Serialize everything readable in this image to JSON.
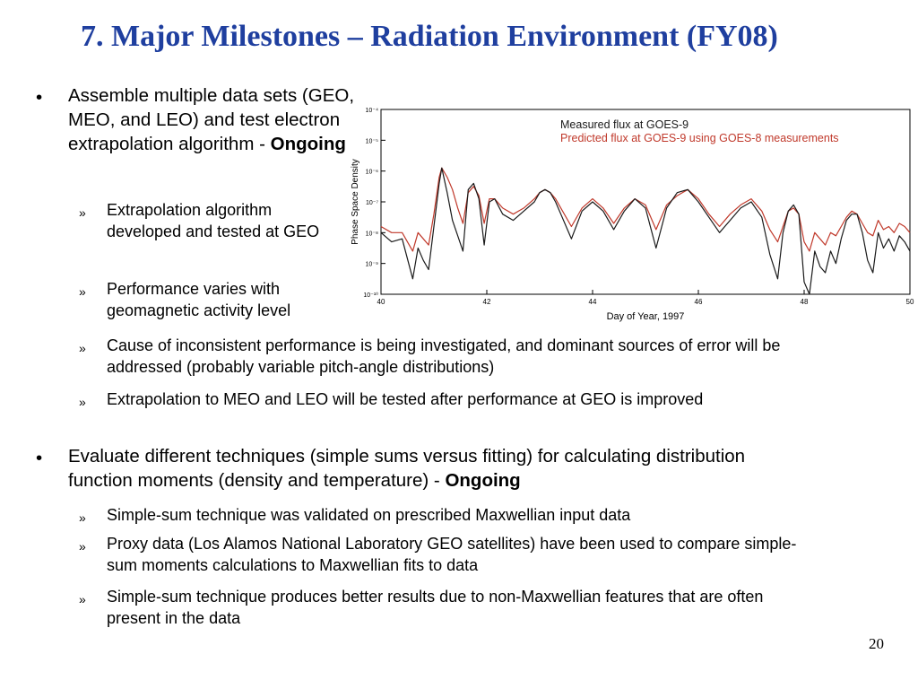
{
  "slide": {
    "title": "7. Major Milestones – Radiation Environment (FY08)",
    "page_number": "20",
    "bullet_l1_glyph": "•",
    "bullet_l2_glyph": "»"
  },
  "section1": {
    "text": "Assemble multiple data sets (GEO, MEO, and LEO) and test electron extrapolation algorithm - ",
    "status": "Ongoing",
    "subitems": [
      "Extrapolation algorithm developed and tested at GEO",
      "Performance varies with geomagnetic activity level",
      "Cause of inconsistent performance is being investigated, and dominant sources of error will be addressed (probably variable pitch-angle distributions)",
      "Extrapolation to MEO and LEO will be tested after performance at GEO is improved"
    ]
  },
  "section2": {
    "text": "Evaluate different techniques (simple sums versus fitting) for calculating distribution function moments (density and temperature)  - ",
    "status": "Ongoing",
    "subitems": [
      "Simple-sum technique was validated on prescribed Maxwellian input data",
      "Proxy data (Los Alamos National Laboratory GEO satellites) have been used to compare simple-sum moments calculations to Maxwellian fits to data",
      "Simple-sum technique produces better results due to non-Maxwellian features that are often present in the data"
    ]
  },
  "chart_data": {
    "type": "line",
    "xlabel": "Day of Year, 1997",
    "ylabel": "Phase Space Density",
    "xlim": [
      40,
      50
    ],
    "xticks": [
      "40",
      "42",
      "44",
      "46",
      "48",
      "50"
    ],
    "ylog": true,
    "ylim_exp": [
      -10,
      -4
    ],
    "yticks": [
      "10⁻¹⁰",
      "10⁻⁹",
      "10⁻⁸",
      "10⁻⁷",
      "10⁻⁶",
      "10⁻⁵",
      "10⁻⁴"
    ],
    "colors": {
      "measured": "#1a1a1a",
      "predicted": "#c0392b"
    },
    "series": [
      {
        "name": "Measured flux at GOES-9",
        "color": "#1a1a1a",
        "x": [
          40.0,
          40.2,
          40.4,
          40.6,
          40.7,
          40.8,
          40.9,
          41.0,
          41.1,
          41.15,
          41.25,
          41.35,
          41.45,
          41.55,
          41.65,
          41.75,
          41.85,
          41.95,
          42.05,
          42.15,
          42.3,
          42.5,
          42.7,
          42.9,
          43.0,
          43.1,
          43.2,
          43.3,
          43.4,
          43.6,
          43.8,
          44.0,
          44.2,
          44.4,
          44.6,
          44.8,
          45.0,
          45.2,
          45.4,
          45.6,
          45.8,
          46.0,
          46.2,
          46.4,
          46.6,
          46.8,
          47.0,
          47.2,
          47.35,
          47.5,
          47.6,
          47.7,
          47.8,
          47.9,
          48.0,
          48.1,
          48.2,
          48.3,
          48.4,
          48.5,
          48.6,
          48.7,
          48.8,
          48.9,
          49.0,
          49.1,
          49.2,
          49.3,
          49.4,
          49.5,
          49.6,
          49.7,
          49.8,
          49.9,
          50.0
        ],
        "y": [
          -8.0,
          -8.3,
          -8.2,
          -9.5,
          -8.5,
          -8.9,
          -9.2,
          -7.8,
          -6.4,
          -5.9,
          -6.7,
          -7.6,
          -8.1,
          -8.6,
          -6.6,
          -6.4,
          -6.9,
          -8.4,
          -7.0,
          -6.9,
          -7.4,
          -7.6,
          -7.3,
          -7.0,
          -6.7,
          -6.6,
          -6.7,
          -7.0,
          -7.4,
          -8.2,
          -7.3,
          -7.0,
          -7.3,
          -7.9,
          -7.3,
          -6.9,
          -7.2,
          -8.5,
          -7.2,
          -6.7,
          -6.6,
          -7.0,
          -7.5,
          -8.0,
          -7.6,
          -7.2,
          -7.0,
          -7.5,
          -8.7,
          -9.5,
          -8.0,
          -7.3,
          -7.1,
          -7.4,
          -9.6,
          -10.0,
          -8.6,
          -9.1,
          -9.3,
          -8.6,
          -9.0,
          -8.2,
          -7.6,
          -7.4,
          -7.4,
          -8.0,
          -8.9,
          -9.3,
          -8.0,
          -8.5,
          -8.2,
          -8.6,
          -8.1,
          -8.3,
          -8.6
        ]
      },
      {
        "name": "Predicted flux at GOES-9 using GOES-8 measurements",
        "color": "#c0392b",
        "x": [
          40.0,
          40.2,
          40.4,
          40.6,
          40.7,
          40.8,
          40.9,
          41.0,
          41.1,
          41.15,
          41.25,
          41.35,
          41.45,
          41.55,
          41.65,
          41.75,
          41.85,
          41.95,
          42.05,
          42.15,
          42.3,
          42.5,
          42.7,
          42.9,
          43.0,
          43.1,
          43.2,
          43.3,
          43.4,
          43.6,
          43.8,
          44.0,
          44.2,
          44.4,
          44.6,
          44.8,
          45.0,
          45.2,
          45.4,
          45.6,
          45.8,
          46.0,
          46.2,
          46.4,
          46.6,
          46.8,
          47.0,
          47.2,
          47.35,
          47.5,
          47.6,
          47.7,
          47.8,
          47.9,
          48.0,
          48.1,
          48.2,
          48.3,
          48.4,
          48.5,
          48.6,
          48.7,
          48.8,
          48.9,
          49.0,
          49.1,
          49.2,
          49.3,
          49.4,
          49.5,
          49.6,
          49.7,
          49.8,
          49.9,
          50.0
        ],
        "y": [
          -7.8,
          -8.0,
          -8.0,
          -8.6,
          -8.0,
          -8.2,
          -8.4,
          -7.4,
          -6.2,
          -5.9,
          -6.2,
          -6.6,
          -7.2,
          -7.7,
          -6.7,
          -6.5,
          -6.8,
          -7.7,
          -6.9,
          -6.9,
          -7.2,
          -7.4,
          -7.2,
          -6.9,
          -6.7,
          -6.6,
          -6.7,
          -6.9,
          -7.2,
          -7.8,
          -7.2,
          -6.9,
          -7.2,
          -7.7,
          -7.2,
          -6.9,
          -7.1,
          -7.9,
          -7.1,
          -6.8,
          -6.6,
          -6.9,
          -7.4,
          -7.8,
          -7.4,
          -7.1,
          -6.9,
          -7.3,
          -7.9,
          -8.3,
          -7.8,
          -7.3,
          -7.2,
          -7.4,
          -8.3,
          -8.6,
          -8.0,
          -8.2,
          -8.4,
          -8.0,
          -8.1,
          -7.8,
          -7.5,
          -7.3,
          -7.4,
          -7.7,
          -8.0,
          -8.1,
          -7.6,
          -7.9,
          -7.8,
          -8.0,
          -7.7,
          -7.8,
          -8.0
        ]
      }
    ]
  }
}
